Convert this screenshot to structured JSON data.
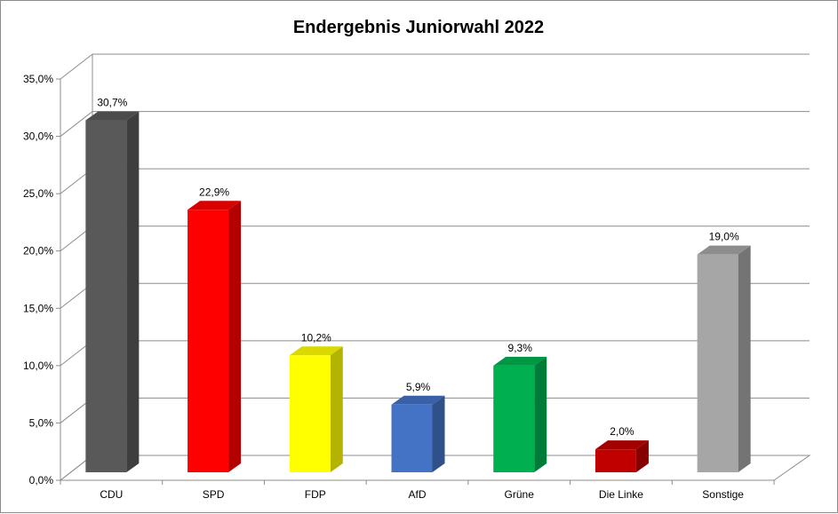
{
  "chart_data": {
    "type": "bar",
    "title": "Endergebnis Juniorwahl 2022",
    "xlabel": "",
    "ylabel": "",
    "categories": [
      "CDU",
      "SPD",
      "FDP",
      "AfD",
      "Grüne",
      "Die Linke",
      "Sonstige"
    ],
    "values": [
      30.7,
      22.9,
      10.2,
      5.9,
      9.3,
      2.0,
      19.0
    ],
    "data_labels": [
      "30,7%",
      "22,9%",
      "10,2%",
      "5,9%",
      "9,3%",
      "2,0%",
      "19,0%"
    ],
    "colors": [
      "#595959",
      "#ff0000",
      "#ffff00",
      "#4472c4",
      "#00b050",
      "#c00000",
      "#a6a6a6"
    ],
    "ylim": [
      0,
      35
    ],
    "yticks": [
      0,
      5,
      10,
      15,
      20,
      25,
      30,
      35
    ],
    "ytick_labels": [
      "0,0%",
      "5,0%",
      "10,0%",
      "15,0%",
      "20,0%",
      "25,0%",
      "30,0%",
      "35,0%"
    ],
    "grid": true,
    "style": "3d-column",
    "legend": "none"
  }
}
